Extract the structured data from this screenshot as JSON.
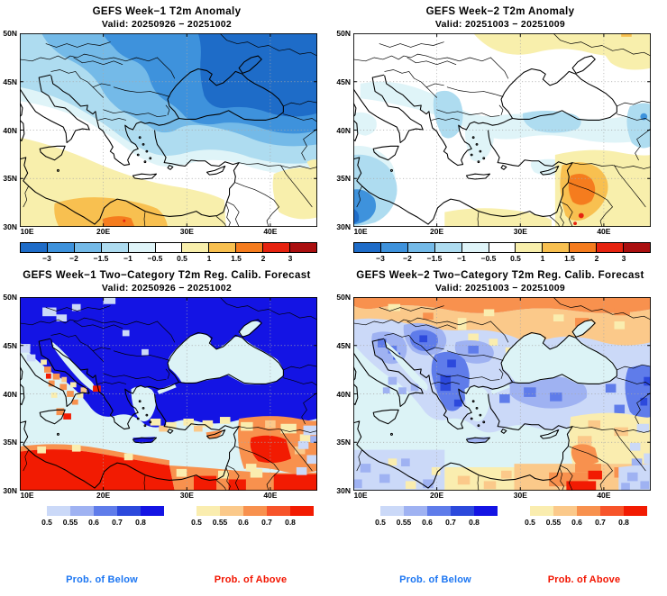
{
  "chart_data": [
    {
      "type": "filled_contour_map",
      "title": "GEFS Week−1 T2m Anomaly",
      "valid": "Valid: 20250926 − 20251002",
      "xlabel_ticks": [
        "10E",
        "20E",
        "30E",
        "40E"
      ],
      "ylabel_ticks": [
        "50N",
        "45N",
        "40N",
        "35N",
        "30N"
      ],
      "lon_range": [
        10,
        45.6
      ],
      "lat_range": [
        30,
        50
      ],
      "scale": "anomaly",
      "pattern": "Cold anomalies (-1 to -3) over eastern Europe, Ukraine, Black Sea and Turkey; near zero over central Mediterranean; warm anomalies (+0.5 to +2) over Tunisia-Libya and Sinai/Egypt."
    },
    {
      "type": "filled_contour_map",
      "title": "GEFS Week−2 T2m Anomaly",
      "valid": "Valid: 20251003 − 20251009",
      "xlabel_ticks": [
        "10E",
        "20E",
        "30E",
        "40E"
      ],
      "ylabel_ticks": [
        "50N",
        "45N",
        "40N",
        "35N",
        "30N"
      ],
      "lon_range": [
        10,
        45.6
      ],
      "lat_range": [
        30,
        50
      ],
      "scale": "anomaly",
      "pattern": "Mostly near zero; weak warm band (+0.5) along northern edge; weak cool patches (-0.5 to -1) over Balkans, Greece, Anatolia and far southwest; warm (+1 to +2) over Jordan/Israel/Sinai."
    },
    {
      "type": "two_category_probability_map",
      "title": "GEFS Week−1 Two−Category T2m Reg. Calib. Forecast",
      "valid": "Valid: 20250926 − 20251002",
      "xlabel_ticks": [
        "10E",
        "20E",
        "30E",
        "40E"
      ],
      "ylabel_ticks": [
        "50N",
        "45N",
        "40N",
        "35N",
        "30N"
      ],
      "lon_range": [
        10,
        45.6
      ],
      "lat_range": [
        30,
        50
      ],
      "scale_below": "prob_below",
      "scale_above": "prob_above",
      "pattern": "Probability of below normal > 0.8 over most of Europe, Ukraine and Turkey; probability of above normal 0.6-0.8+ over North Africa, Italy west coast, Sicily and the Middle East."
    },
    {
      "type": "two_category_probability_map",
      "title": "GEFS Week−2 Two−Category T2m Reg. Calib. Forecast",
      "valid": "Valid: 20251003 − 20251009",
      "xlabel_ticks": [
        "10E",
        "20E",
        "30E",
        "40E"
      ],
      "ylabel_ticks": [
        "50N",
        "45N",
        "40N",
        "35N",
        "30N"
      ],
      "lon_range": [
        10,
        45.6
      ],
      "lat_range": [
        30,
        50
      ],
      "scale_below": "prob_below",
      "scale_above": "prob_above",
      "pattern": "Moderate below-normal probabilities (0.5-0.7) over Balkans, Italy, Greece and Anatolia; above-normal band (0.55-0.7) along northern edge over Ukraine and over Egypt/Levant in the south."
    }
  ],
  "scales": {
    "anomaly": {
      "boundary_labels": [
        "−3",
        "−2",
        "−1.5",
        "−1",
        "−0.5",
        "0.5",
        "1",
        "1.5",
        "2",
        "3"
      ],
      "colors": [
        "#1E6CC8",
        "#3E92DC",
        "#74BAE8",
        "#AEDCF0",
        "#DFF4F8",
        "#FFFFFF",
        "#F8EFAC",
        "#F8C050",
        "#F57C1E",
        "#E62310",
        "#AA0F10"
      ]
    },
    "prob_below": {
      "labels": [
        "0.5",
        "0.55",
        "0.6",
        "0.7",
        "0.8"
      ],
      "colors": [
        "#CBD9F8",
        "#9FB2F2",
        "#5F7CEA",
        "#2C49DC",
        "#1414E4"
      ]
    },
    "prob_above": {
      "labels": [
        "0.5",
        "0.55",
        "0.6",
        "0.7",
        "0.8"
      ],
      "colors": [
        "#FAEDAF",
        "#FBC98A",
        "#F8914E",
        "#F7542A",
        "#F21B02"
      ]
    }
  },
  "map_palette": {
    "m3": "#1E6CC8",
    "m2": "#3E92DC",
    "m15": "#74BAE8",
    "m1": "#AEDCF0",
    "m05": "#DFF4F8",
    "p05": "#F8EFAC",
    "p1": "#F8C050",
    "p15": "#F57C1E",
    "p2": "#E62310",
    "b1": "#CBD9F8",
    "b2": "#9FB2F2",
    "b3": "#5F7CEA",
    "b4": "#2C49DC",
    "b5": "#1414E4",
    "a1": "#FAEDAF",
    "a2": "#FBC98A",
    "a3": "#F8914E",
    "a4": "#F7542A",
    "a5": "#F21B02",
    "sea": "#DCF3F6",
    "white": "#FFFFFF"
  },
  "legend": {
    "below": {
      "label": "Prob. of Below",
      "color": "#1C76F2"
    },
    "above": {
      "label": "Prob. of Above",
      "color": "#F21400"
    }
  }
}
